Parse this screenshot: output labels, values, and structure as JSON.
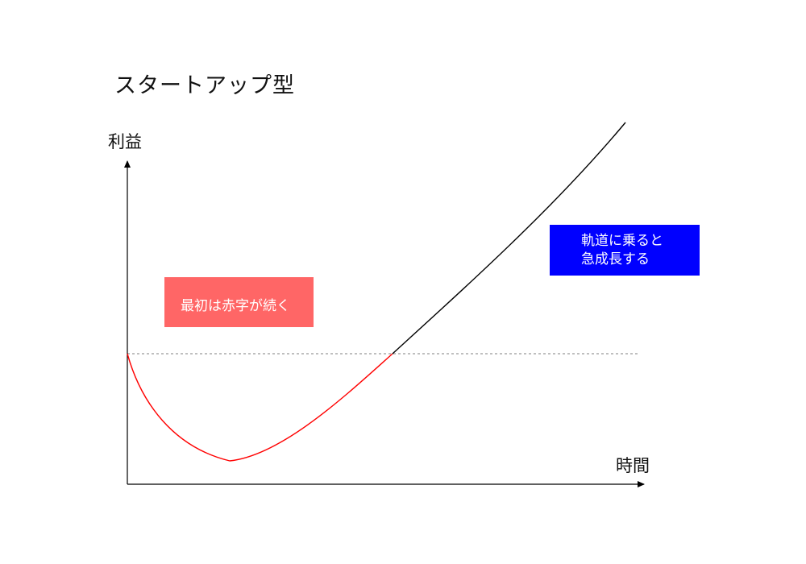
{
  "title": "スタートアップ型",
  "y_axis_label": "利益",
  "x_axis_label": "時間",
  "callouts": {
    "red": {
      "text": "最初は赤字が続く"
    },
    "blue": {
      "line1": "軌道に乗ると",
      "line2": "急成長する"
    }
  },
  "colors": {
    "loss_curve": "#ff0000",
    "growth_curve": "#000000",
    "breakeven_line": "#999999",
    "callout_red_bg": "#ff6666",
    "callout_blue_bg": "#0000ff",
    "axis": "#000000"
  }
}
